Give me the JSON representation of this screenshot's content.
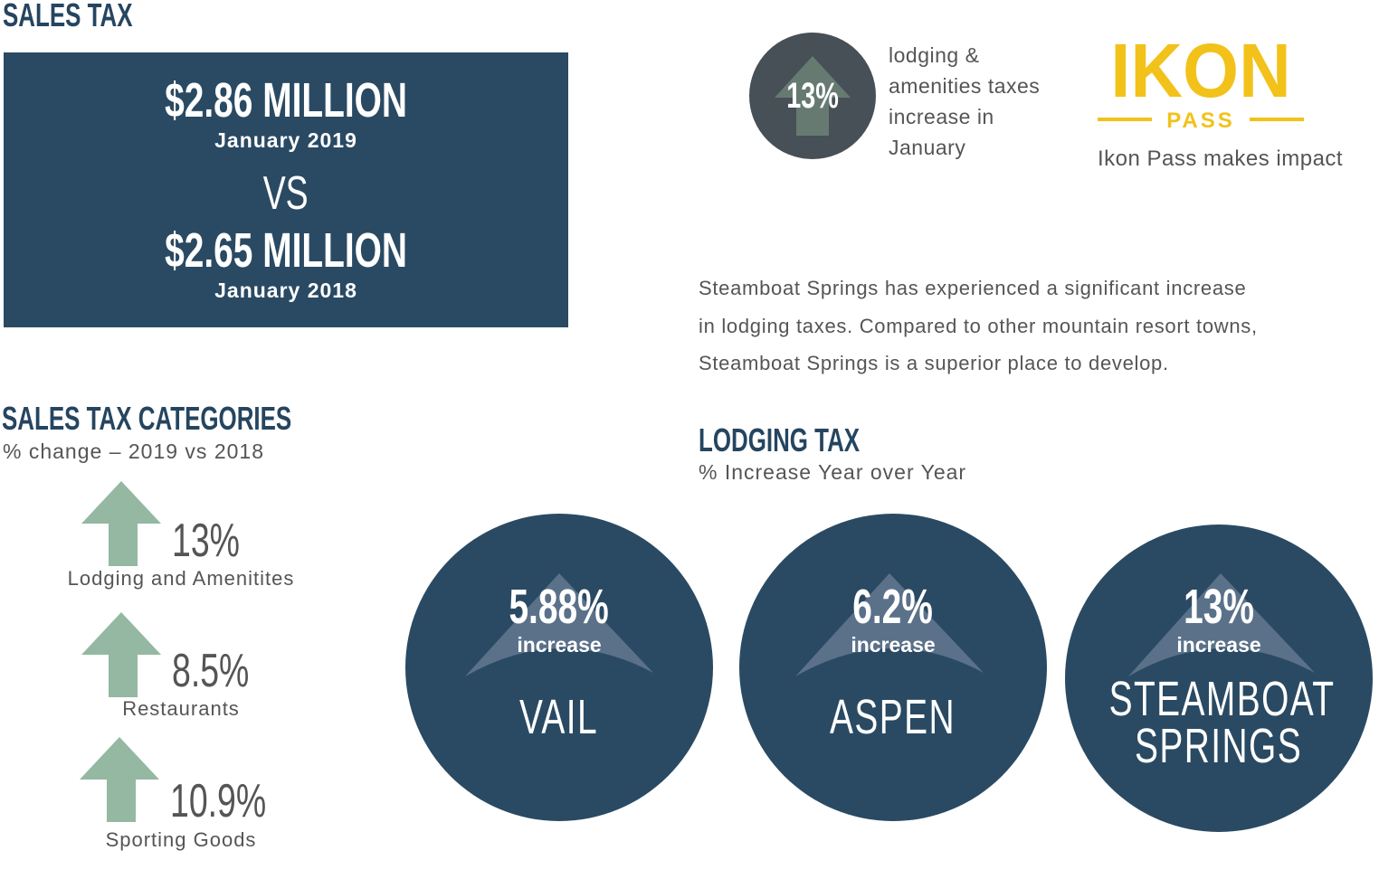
{
  "sales_tax": {
    "title": "SALES TAX",
    "current_value": "$2.86 MILLION",
    "current_period": "January 2019",
    "vs": "VS",
    "previous_value": "$2.65 MILLION",
    "previous_period": "January 2018"
  },
  "highlight": {
    "value": "13%",
    "text_lines": [
      "lodging &",
      "amenities taxes",
      "increase in",
      "January"
    ]
  },
  "ikon": {
    "logo_text": "IKON",
    "logo_sub": "PASS",
    "caption": "Ikon Pass makes impact"
  },
  "paragraph": {
    "lines": [
      "Steamboat Springs has experienced a significant increase",
      "in lodging taxes. Compared to other mountain resort towns,",
      "Steamboat Springs is a superior place to develop."
    ]
  },
  "categories": {
    "title": "SALES TAX CATEGORIES",
    "subtitle": "% change – 2019 vs 2018",
    "items": [
      {
        "value": "13%",
        "label": "Lodging and Amenitites"
      },
      {
        "value": "8.5%",
        "label": "Restaurants"
      },
      {
        "value": "10.9%",
        "label": "Sporting Goods"
      }
    ]
  },
  "lodging_tax": {
    "title": "LODGING TAX",
    "subtitle": "% Increase Year over Year",
    "items": [
      {
        "value": "5.88%",
        "increase": "increase",
        "city": "VAIL",
        "city2": ""
      },
      {
        "value": "6.2%",
        "increase": "increase",
        "city": "ASPEN",
        "city2": ""
      },
      {
        "value": "13%",
        "increase": "increase",
        "city": "STEAMBOAT",
        "city2": "SPRINGS"
      }
    ]
  },
  "colors": {
    "navy": "#2a4a63",
    "arrow_green": "#94b8a2",
    "dark_circle": "#474f57",
    "ikon_yellow": "#f2c21b"
  }
}
